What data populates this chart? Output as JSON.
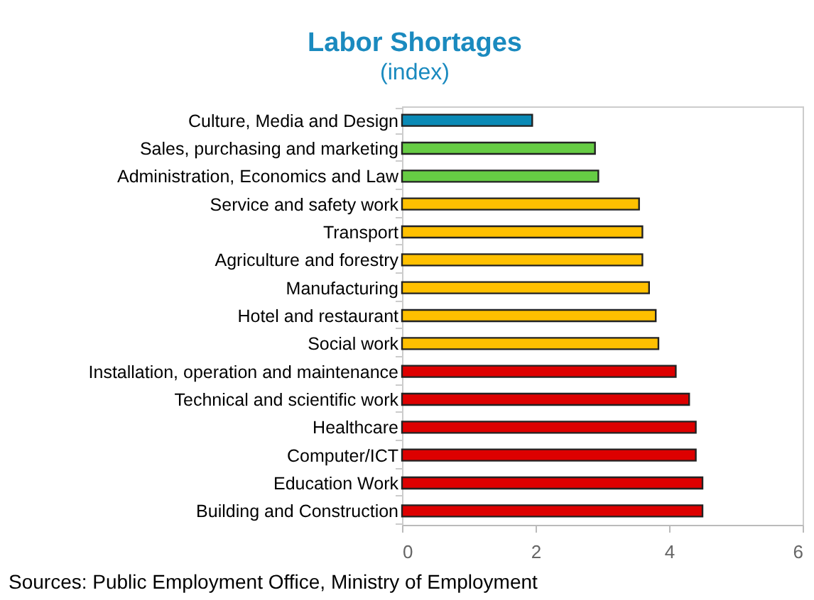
{
  "chart_data": {
    "type": "bar",
    "orientation": "horizontal",
    "title": "Labor Shortages",
    "subtitle": "(index)",
    "categories": [
      "Culture, Media and Design",
      "Sales, purchasing and marketing",
      "Administration, Economics and Law",
      "Service and safety work",
      "Transport",
      "Agriculture and forestry",
      "Manufacturing",
      "Hotel and restaurant",
      "Social work",
      "Installation, operation and maintenance",
      "Technical and scientific work",
      "Healthcare",
      "Computer/ICT",
      "Education Work",
      "Building and Construction"
    ],
    "values": [
      1.95,
      2.89,
      2.94,
      3.55,
      3.6,
      3.6,
      3.7,
      3.8,
      3.84,
      4.1,
      4.3,
      4.4,
      4.4,
      4.5,
      4.5
    ],
    "colors": [
      "#0a8ab6",
      "#66cc44",
      "#66cc44",
      "#ffc000",
      "#ffc000",
      "#ffc000",
      "#ffc000",
      "#ffc000",
      "#ffc000",
      "#dd0000",
      "#dd0000",
      "#dd0000",
      "#dd0000",
      "#dd0000",
      "#dd0000"
    ],
    "xlim": [
      0,
      6
    ],
    "xticks": [
      0,
      2,
      4,
      6
    ],
    "grid": false,
    "annotations": [
      "Sources: Public Employment Office, Ministry of Employment"
    ]
  }
}
